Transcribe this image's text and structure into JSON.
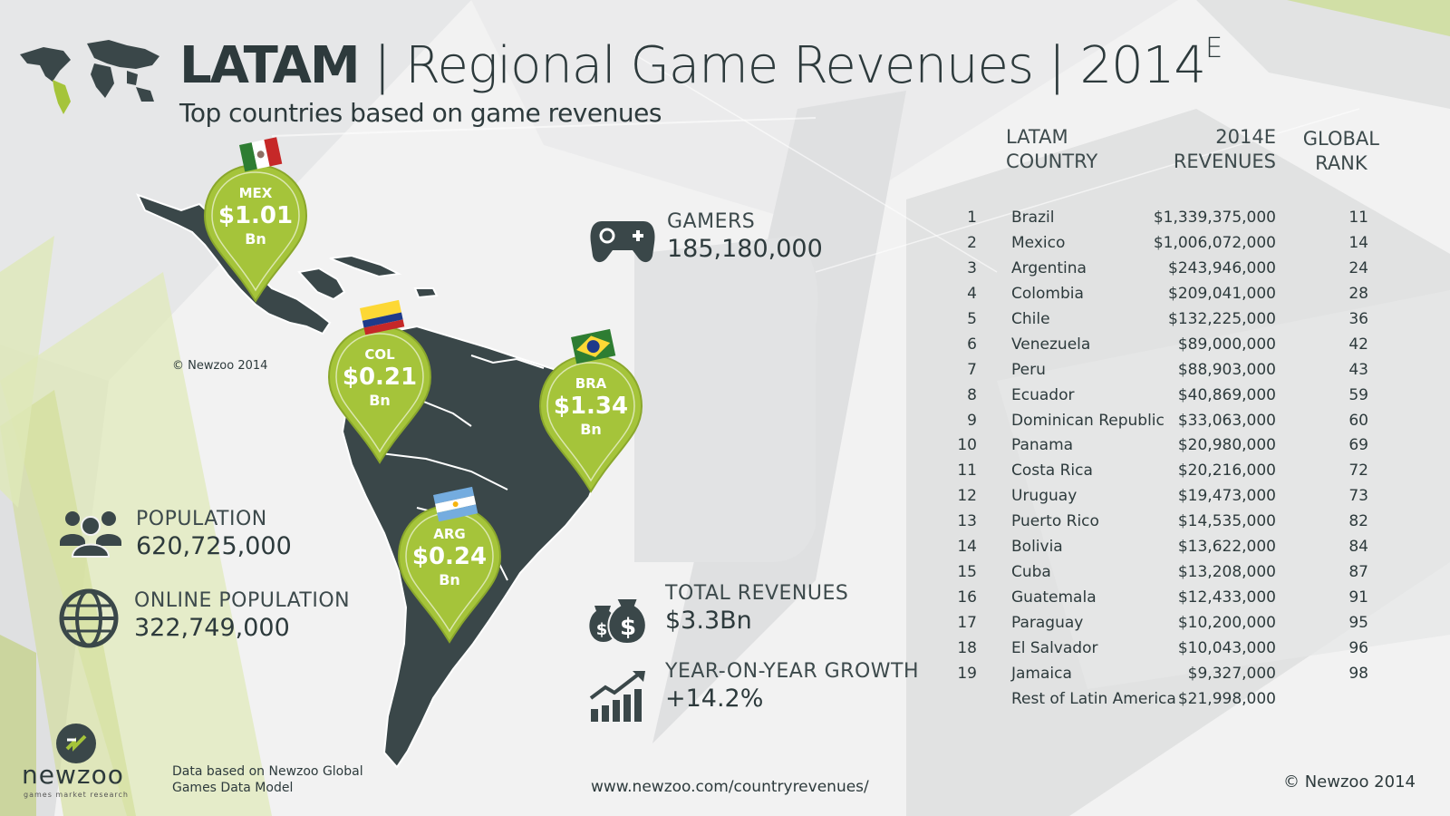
{
  "header": {
    "title_strong": "LATAM",
    "title_rest": " | Regional Game Revenues | 2014",
    "title_sup": "E",
    "subtitle": "Top countries based on game revenues"
  },
  "map_copyright": "© Newzoo 2014",
  "pins": [
    {
      "code": "MEX",
      "value": "$1.01",
      "unit": "Bn"
    },
    {
      "code": "COL",
      "value": "$0.21",
      "unit": "Bn"
    },
    {
      "code": "BRA",
      "value": "$1.34",
      "unit": "Bn"
    },
    {
      "code": "ARG",
      "value": "$0.24",
      "unit": "Bn"
    }
  ],
  "stats": {
    "gamers": {
      "label": "GAMERS",
      "value": "185,180,000"
    },
    "population": {
      "label": "POPULATION",
      "value": "620,725,000"
    },
    "online_population": {
      "label": "ONLINE POPULATION",
      "value": "322,749,000"
    },
    "total_revenues": {
      "label": "TOTAL REVENUES",
      "value": "$3.3Bn"
    },
    "growth": {
      "label": "YEAR-ON-YEAR GROWTH",
      "value": "+14.2%"
    }
  },
  "table": {
    "headers": {
      "country_1": "LATAM",
      "country_2": "COUNTRY",
      "revenue_1": "2014E",
      "revenue_2": "REVENUES",
      "rank_1": "GLOBAL",
      "rank_2": "RANK"
    },
    "rows": [
      {
        "rank": "1",
        "country": "Brazil",
        "revenue": "$1,339,375,000",
        "global_rank": "11"
      },
      {
        "rank": "2",
        "country": "Mexico",
        "revenue": "$1,006,072,000",
        "global_rank": "14"
      },
      {
        "rank": "3",
        "country": "Argentina",
        "revenue": "$243,946,000",
        "global_rank": "24"
      },
      {
        "rank": "4",
        "country": "Colombia",
        "revenue": "$209,041,000",
        "global_rank": "28"
      },
      {
        "rank": "5",
        "country": "Chile",
        "revenue": "$132,225,000",
        "global_rank": "36"
      },
      {
        "rank": "6",
        "country": "Venezuela",
        "revenue": "$89,000,000",
        "global_rank": "42"
      },
      {
        "rank": "7",
        "country": "Peru",
        "revenue": "$88,903,000",
        "global_rank": "43"
      },
      {
        "rank": "8",
        "country": "Ecuador",
        "revenue": "$40,869,000",
        "global_rank": "59"
      },
      {
        "rank": "9",
        "country": "Dominican Republic",
        "revenue": "$33,063,000",
        "global_rank": "60"
      },
      {
        "rank": "10",
        "country": "Panama",
        "revenue": "$20,980,000",
        "global_rank": "69"
      },
      {
        "rank": "11",
        "country": "Costa Rica",
        "revenue": "$20,216,000",
        "global_rank": "72"
      },
      {
        "rank": "12",
        "country": "Uruguay",
        "revenue": "$19,473,000",
        "global_rank": "73"
      },
      {
        "rank": "13",
        "country": "Puerto Rico",
        "revenue": "$14,535,000",
        "global_rank": "82"
      },
      {
        "rank": "14",
        "country": "Bolivia",
        "revenue": "$13,622,000",
        "global_rank": "84"
      },
      {
        "rank": "15",
        "country": "Cuba",
        "revenue": "$13,208,000",
        "global_rank": "87"
      },
      {
        "rank": "16",
        "country": "Guatemala",
        "revenue": "$12,433,000",
        "global_rank": "91"
      },
      {
        "rank": "17",
        "country": "Paraguay",
        "revenue": "$10,200,000",
        "global_rank": "95"
      },
      {
        "rank": "18",
        "country": "El Salvador",
        "revenue": "$10,043,000",
        "global_rank": "96"
      },
      {
        "rank": "19",
        "country": "Jamaica",
        "revenue": "$9,327,000",
        "global_rank": "98"
      },
      {
        "rank": "",
        "country": "Rest of Latin America",
        "revenue": "$21,998,000",
        "global_rank": ""
      }
    ]
  },
  "footer": {
    "note": "Data based on Newzoo Global Games Data Model",
    "url": "www.newzoo.com/countryrevenues/",
    "copyright": "© Newzoo 2014",
    "logo_text": "newzoo",
    "logo_tagline": "games market research"
  },
  "colors": {
    "accent": "#a5c43a",
    "dark": "#3a4749",
    "background": "#f1f2f2"
  }
}
